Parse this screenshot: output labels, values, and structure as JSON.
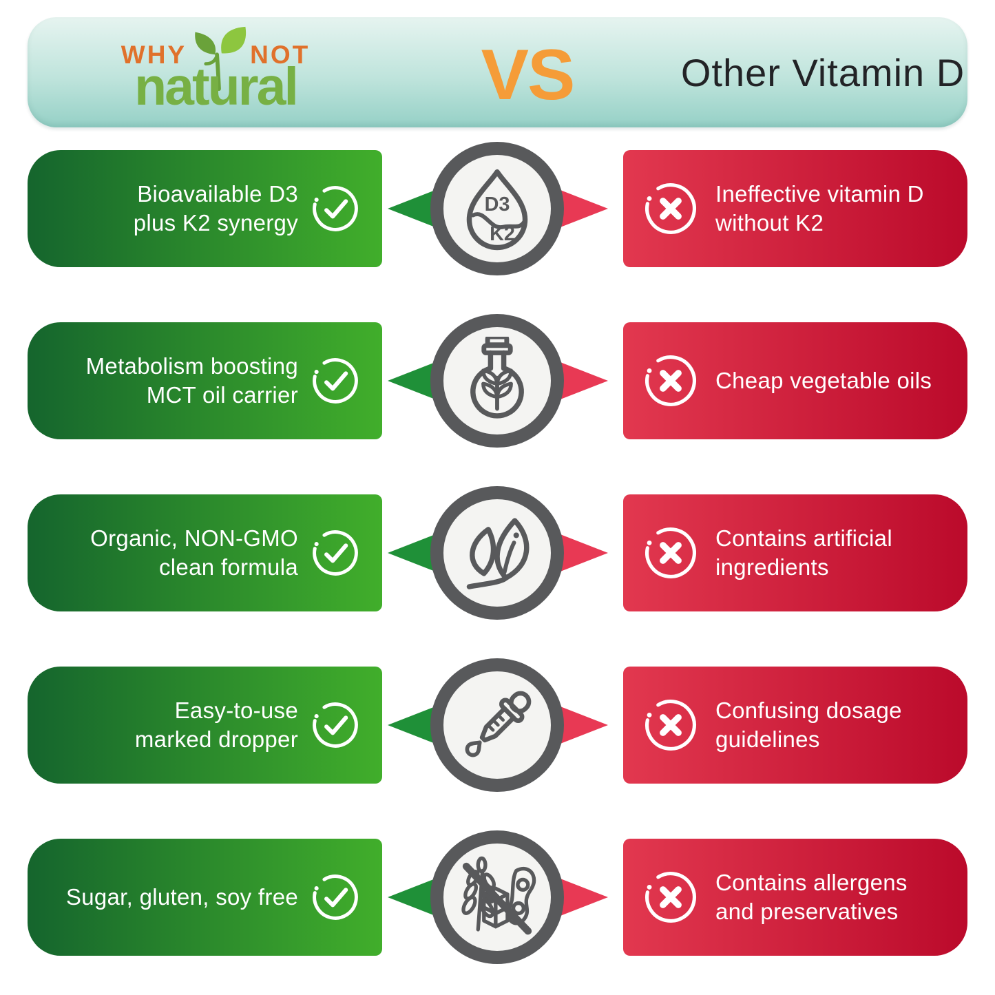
{
  "header": {
    "logo": {
      "line1_left": "WHY",
      "line1_right": "NOT",
      "line2": "natural"
    },
    "vs_label": "VS",
    "competitor_title": "Other Vitamin D"
  },
  "colors": {
    "header_teal_top": "#e6f4f0",
    "header_teal_bottom": "#95d0c6",
    "vs_orange": "#f59c38",
    "logo_orange": "#e0712b",
    "logo_green": "#77b044",
    "green_dark": "#15652d",
    "green_bright": "#41ae2b",
    "red_bright": "#e2384f",
    "red_dark": "#bb0a2b",
    "arrow_green": "#1f9038",
    "arrow_red": "#e83954",
    "ring_gray": "#58595b",
    "circle_fill": "#f4f4f2"
  },
  "rows": [
    {
      "pro": "Bioavailable D3\nplus K2 synergy",
      "icon": "d3-k2-drop-icon",
      "con": "Ineffective vitamin D\nwithout K2"
    },
    {
      "pro": "Metabolism boosting\nMCT oil carrier",
      "icon": "oil-bottle-icon",
      "con": "Cheap vegetable oils"
    },
    {
      "pro": "Organic, NON-GMO\nclean formula",
      "icon": "leaves-icon",
      "con": "Contains artificial\ningredients"
    },
    {
      "pro": "Easy-to-use\nmarked dropper",
      "icon": "dropper-icon",
      "con": "Confusing dosage\nguidelines"
    },
    {
      "pro": "Sugar, gluten, soy free",
      "icon": "no-allergens-icon",
      "con": "Contains allergens\nand preservatives"
    }
  ]
}
